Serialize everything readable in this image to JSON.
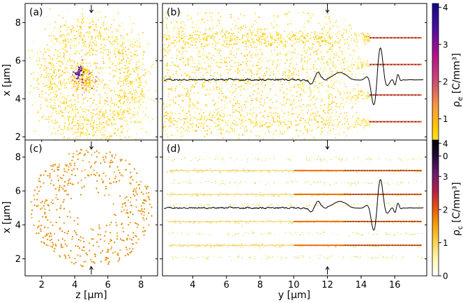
{
  "chart_data": [
    {
      "id": "a",
      "type": "scatter",
      "panel_label": "(a)",
      "xlabel": "",
      "ylabel": "x [μm]",
      "xlim": [
        1,
        9
      ],
      "ylim": [
        1,
        9
      ],
      "xticks": [
        "2",
        "4",
        "6",
        "8"
      ],
      "xtick_values": [
        2,
        4,
        6,
        8
      ],
      "yticks": [
        "2",
        "4",
        "6",
        "8"
      ],
      "ytick_values": [
        2,
        4,
        6,
        8
      ],
      "colormap": "plasma_r",
      "description_of_distribution": "ring of electrons, outer radius ~3.5 um, inner hole ~1.7 um, dense blob near center-left",
      "markers": {
        "top": {
          "x": 5,
          "direction": "down"
        },
        "bottom": {
          "x": 5,
          "direction": "up"
        }
      }
    },
    {
      "id": "b",
      "type": "scatter",
      "panel_label": "(b)",
      "xlabel": "",
      "xlim": [
        2.2,
        17.9
      ],
      "ylim": [
        1,
        9
      ],
      "xtick_values": [
        4,
        6,
        8,
        10,
        12,
        14,
        16
      ],
      "ytick_values": [
        2,
        4,
        6,
        8
      ],
      "bands_x": [
        2.8,
        4.2,
        5.8,
        7.2
      ],
      "bands_start_y": 14.5,
      "waveform_baseline_x": 5.0,
      "markers": {
        "top": {
          "x": 12,
          "direction": "down"
        },
        "bottom": {
          "x": 12,
          "direction": "up"
        }
      }
    },
    {
      "id": "c",
      "type": "scatter",
      "panel_label": "(c)",
      "xlabel": "z [μm]",
      "ylabel": "x [μm]",
      "xlim": [
        1,
        9
      ],
      "ylim": [
        1,
        9
      ],
      "xticks": [
        "2",
        "4",
        "6",
        "8"
      ],
      "xtick_values": [
        2,
        4,
        6,
        8
      ],
      "yticks": [
        "2",
        "4",
        "6",
        "8"
      ],
      "ytick_values": [
        2,
        4,
        6,
        8
      ],
      "markers": {
        "top": {
          "x": 5,
          "direction": "down"
        },
        "bottom": {
          "x": 5,
          "direction": "up"
        }
      }
    },
    {
      "id": "d",
      "type": "scatter",
      "panel_label": "(d)",
      "xlabel": "y [μm]",
      "xlim": [
        2.2,
        17.9
      ],
      "ylim": [
        1,
        9
      ],
      "xticks": [
        "4",
        "6",
        "8",
        "10",
        "12",
        "14",
        "16"
      ],
      "xtick_values": [
        4,
        6,
        8,
        10,
        12,
        14,
        16
      ],
      "ytick_values": [
        2,
        4,
        6,
        8
      ],
      "bands_x": [
        2.1,
        2.8,
        3.5,
        4.2,
        5.2,
        5.8,
        6.5,
        7.2,
        7.9
      ],
      "waveform_baseline_x": 5.0,
      "markers": {
        "top": {
          "x": 12,
          "direction": "down"
        },
        "bottom": {
          "x": 12,
          "direction": "up"
        }
      }
    }
  ],
  "colorbars": [
    {
      "id": "cb-top",
      "label": "ρe [C/mm³]",
      "label_main": "ρ",
      "label_sub": "e",
      "label_unit": " [C/mm³]",
      "range": [
        0,
        4.1
      ],
      "ticks": [
        "0",
        "1",
        "2",
        "3",
        "4"
      ],
      "tick_values": [
        0,
        1,
        2,
        3,
        4
      ],
      "colors": [
        "#ffff80",
        "#ffd000",
        "#f89540",
        "#cc4778",
        "#b0108c",
        "#4b0fa0",
        "#0d0887"
      ]
    },
    {
      "id": "cb-bottom",
      "label": "ρc [C/mm³]",
      "label_main": "ρ",
      "label_sub": "c",
      "label_unit": " [C/mm³]",
      "range": [
        0,
        4.1
      ],
      "ticks": [
        "0",
        "1",
        "2",
        "3",
        "4"
      ],
      "tick_values": [
        0,
        1,
        2,
        3,
        4
      ],
      "colors": [
        "#ffffff",
        "#fff8b0",
        "#fcd34d",
        "#f59e0b",
        "#e4570f",
        "#b21e4a",
        "#6b1d6e",
        "#250a3a",
        "#000000"
      ]
    }
  ],
  "colors": {
    "yellow": "#ffd000",
    "pale_yellow": "#f6f07a",
    "orange": "#e08a00",
    "magenta": "#d02080",
    "purple": "#5010a0",
    "waveform": "#000000"
  }
}
